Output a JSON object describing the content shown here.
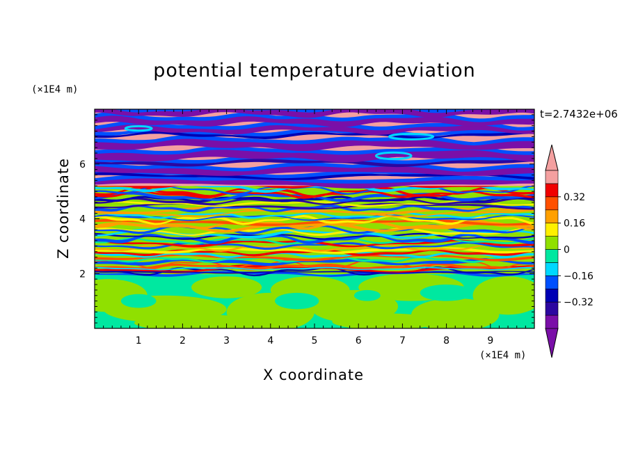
{
  "chart_data": {
    "type": "heatmap",
    "title": "potential temperature deviation",
    "xlabel": "X coordinate",
    "ylabel": "Z coordinate",
    "x_unit": "(×1E4 m)",
    "y_unit": "(×1E4 m)",
    "time_label": "t=2.7432e+06",
    "xlim": [
      0,
      10
    ],
    "ylim": [
      0,
      8
    ],
    "x_ticks": [
      "1",
      "2",
      "3",
      "4",
      "5",
      "6",
      "7",
      "8",
      "9"
    ],
    "y_ticks": [
      "2",
      "4",
      "6"
    ],
    "colorbar": {
      "levels": [
        -0.48,
        -0.4,
        -0.32,
        -0.24,
        -0.16,
        -0.08,
        0,
        0.08,
        0.16,
        0.24,
        0.32,
        0.4,
        0.48
      ],
      "labels": [
        "0.32",
        "0.16",
        "0",
        "−0.16",
        "−0.32"
      ],
      "colors": [
        "#7a0fa8",
        "#2c07a0",
        "#0000b4",
        "#0050ff",
        "#00d8ff",
        "#00e8a0",
        "#90e000",
        "#fff000",
        "#ffa000",
        "#ff5000",
        "#f00000",
        "#f4a0a0"
      ],
      "extend": "both"
    },
    "layers": [
      {
        "z": [
          0,
          1.98
        ],
        "value": "-0.04 / 0.04 (mixed)"
      },
      {
        "z": [
          1.98,
          5.2
        ],
        "value": "wavy bands -0.4 .. 0.4"
      },
      {
        "z": [
          5.2,
          8.0
        ],
        "value": "alternating -0.48 / 0.48 strata"
      }
    ]
  }
}
